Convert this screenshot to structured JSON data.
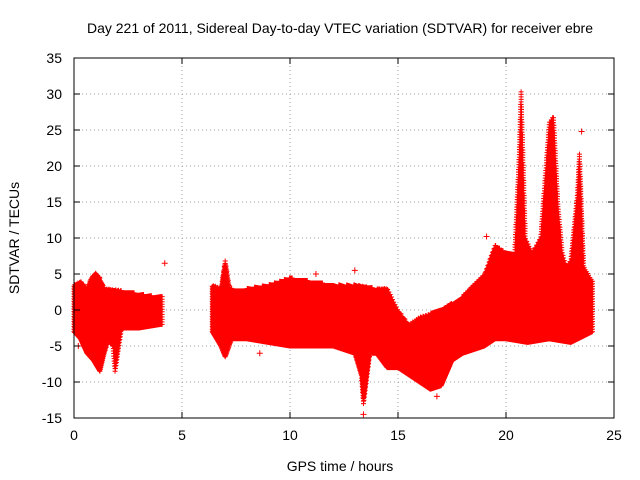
{
  "chart_data": {
    "type": "scatter",
    "title": "Day 221 of 2011, Sidereal Day-to-day VTEC variation (SDTVAR) for receiver ebre",
    "xlabel": "GPS time / hours",
    "ylabel": "SDTVAR / TECUs",
    "xlim": [
      0,
      25
    ],
    "ylim": [
      -15,
      35
    ],
    "xticks": [
      0,
      5,
      10,
      15,
      20,
      25
    ],
    "yticks": [
      -15,
      -10,
      -5,
      0,
      5,
      10,
      15,
      20,
      25,
      30,
      35
    ],
    "grid": true,
    "marker": "+",
    "color": "#ff0000",
    "series": [
      {
        "name": "SDTVAR",
        "envelope_upper": [
          [
            0.0,
            3.5
          ],
          [
            0.3,
            4
          ],
          [
            0.6,
            3
          ],
          [
            0.8,
            4.5
          ],
          [
            1.0,
            5.2
          ],
          [
            1.2,
            4.5
          ],
          [
            1.4,
            3
          ],
          [
            2.0,
            2.8
          ],
          [
            3.0,
            2.3
          ],
          [
            3.5,
            2
          ],
          [
            4.0,
            2
          ]
        ],
        "envelope_lower": [
          [
            0.0,
            -3
          ],
          [
            0.3,
            -4
          ],
          [
            0.6,
            -6
          ],
          [
            0.9,
            -7
          ],
          [
            1.2,
            -8.5
          ],
          [
            1.4,
            -6
          ],
          [
            1.6,
            -4
          ],
          [
            1.8,
            -5
          ],
          [
            1.9,
            -8.5
          ],
          [
            2.2,
            -2.5
          ],
          [
            3.0,
            -2.5
          ],
          [
            4.0,
            -2
          ]
        ],
        "envelope_upper_2": [
          [
            6.4,
            3.5
          ],
          [
            6.8,
            3
          ],
          [
            7.0,
            7
          ],
          [
            7.2,
            3
          ],
          [
            8.0,
            3
          ],
          [
            9.0,
            3.5
          ],
          [
            10.0,
            4.5
          ],
          [
            11.0,
            4
          ],
          [
            12.0,
            3.5
          ],
          [
            13.0,
            3.5
          ],
          [
            14.0,
            3
          ],
          [
            14.5,
            3
          ],
          [
            15.0,
            0
          ],
          [
            15.5,
            -2
          ],
          [
            16.0,
            -1
          ],
          [
            17.0,
            0
          ],
          [
            18.0,
            2
          ],
          [
            19.0,
            5
          ],
          [
            19.5,
            9
          ],
          [
            20.0,
            8
          ],
          [
            20.4,
            8
          ],
          [
            20.6,
            21
          ],
          [
            20.7,
            30.5
          ],
          [
            20.9,
            10
          ],
          [
            21.2,
            8
          ],
          [
            21.6,
            10
          ],
          [
            22.0,
            26
          ],
          [
            22.2,
            27
          ],
          [
            22.4,
            15
          ],
          [
            22.6,
            8
          ],
          [
            22.8,
            6
          ],
          [
            23.0,
            7
          ],
          [
            23.3,
            16
          ],
          [
            23.4,
            22
          ],
          [
            23.6,
            6
          ],
          [
            24.0,
            4
          ]
        ],
        "envelope_lower_2": [
          [
            6.4,
            -3
          ],
          [
            6.8,
            -5
          ],
          [
            7.0,
            -6.5
          ],
          [
            7.3,
            -4
          ],
          [
            8.0,
            -4
          ],
          [
            9.0,
            -4.5
          ],
          [
            10.0,
            -5
          ],
          [
            11.0,
            -5
          ],
          [
            12.0,
            -5
          ],
          [
            13.0,
            -6
          ],
          [
            13.3,
            -9
          ],
          [
            13.4,
            -13
          ],
          [
            13.7,
            -6
          ],
          [
            14.0,
            -6
          ],
          [
            14.5,
            -8
          ],
          [
            15.0,
            -8
          ],
          [
            15.5,
            -9
          ],
          [
            16.0,
            -10
          ],
          [
            16.5,
            -11
          ],
          [
            17.0,
            -10.5
          ],
          [
            17.5,
            -7
          ],
          [
            18.0,
            -6
          ],
          [
            19.0,
            -5
          ],
          [
            19.5,
            -4
          ],
          [
            20.0,
            -4
          ],
          [
            21.0,
            -4.5
          ],
          [
            22.0,
            -4
          ],
          [
            23.0,
            -4.5
          ],
          [
            24.0,
            -3
          ]
        ],
        "outliers": [
          [
            13.4,
            -14.5
          ],
          [
            16.8,
            -12
          ],
          [
            4.2,
            6.5
          ],
          [
            8.6,
            -6
          ],
          [
            11.2,
            5
          ],
          [
            13.0,
            5.5
          ],
          [
            19.1,
            10.2
          ],
          [
            23.3,
            13
          ],
          [
            23.5,
            24.8
          ],
          [
            0.2,
            -5
          ],
          [
            0.7,
            -6
          ]
        ]
      }
    ]
  }
}
